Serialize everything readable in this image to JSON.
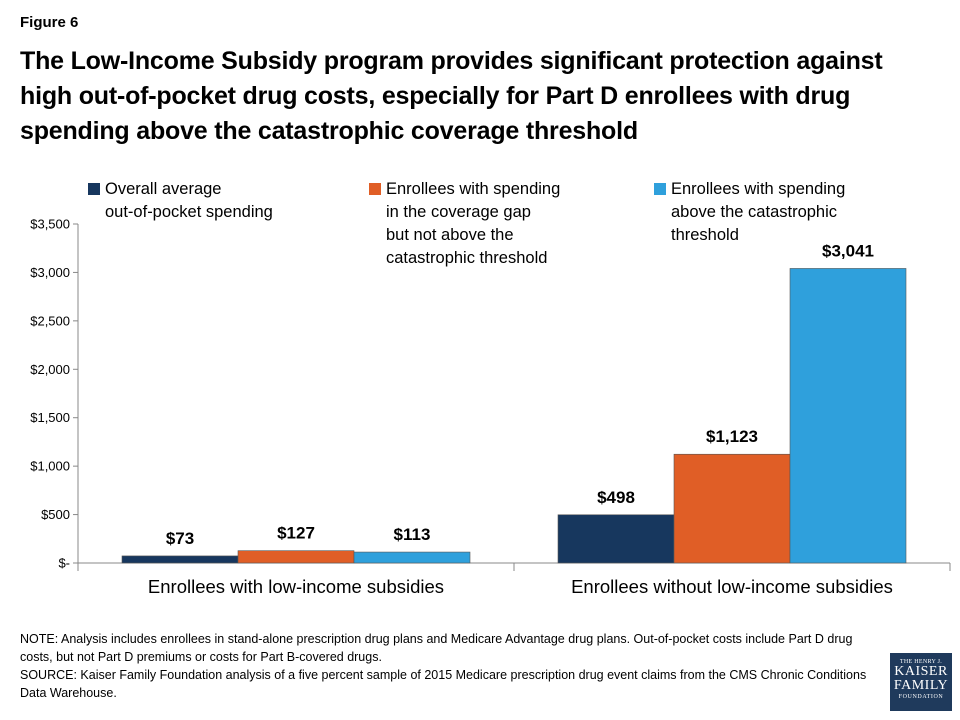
{
  "figure_label": "Figure 6",
  "title": "The Low-Income Subsidy program provides significant protection against high out-of-pocket drug costs, especially for Part D enrollees with drug spending above the catastrophic coverage threshold",
  "colors": {
    "overall": "#17375e",
    "gap": "#e05e26",
    "catastrophic": "#2fa0dc"
  },
  "chart_data": {
    "type": "bar",
    "categories": [
      "Enrollees with low-income subsidies",
      "Enrollees without low-income subsidies"
    ],
    "series": [
      {
        "name": "Overall average\nout-of-pocket spending",
        "values": [
          73,
          498
        ],
        "labels": [
          "$73",
          "$498"
        ],
        "color": "#17375e"
      },
      {
        "name": "Enrollees with spending\nin the coverage gap\nbut not above the\ncatastrophic threshold",
        "values": [
          127,
          1123
        ],
        "labels": [
          "$127",
          "$1,123"
        ],
        "color": "#e05e26"
      },
      {
        "name": "Enrollees with spending\nabove the catastrophic\nthreshold",
        "values": [
          113,
          3041
        ],
        "labels": [
          "$113",
          "$3,041"
        ],
        "color": "#2fa0dc"
      }
    ],
    "ylim": [
      0,
      3500
    ],
    "yticks": [
      0,
      500,
      1000,
      1500,
      2000,
      2500,
      3000,
      3500
    ],
    "ytick_labels": [
      "$-",
      "$500",
      "$1,000",
      "$1,500",
      "$2,000",
      "$2,500",
      "$3,000",
      "$3,500"
    ],
    "legend_position": "top",
    "grid": false
  },
  "note": "NOTE: Analysis includes enrollees in stand-alone prescription drug plans and Medicare Advantage drug plans. Out-of-pocket costs include Part D drug costs, but not Part D premiums or costs for Part B-covered drugs.",
  "source": "SOURCE: Kaiser Family Foundation analysis of a five percent sample of 2015 Medicare prescription drug event claims from the CMS Chronic Conditions Data Warehouse.",
  "logo": {
    "line1": "THE HENRY J.",
    "line2": "KAISER",
    "line3": "FAMILY",
    "line4": "FOUNDATION"
  }
}
